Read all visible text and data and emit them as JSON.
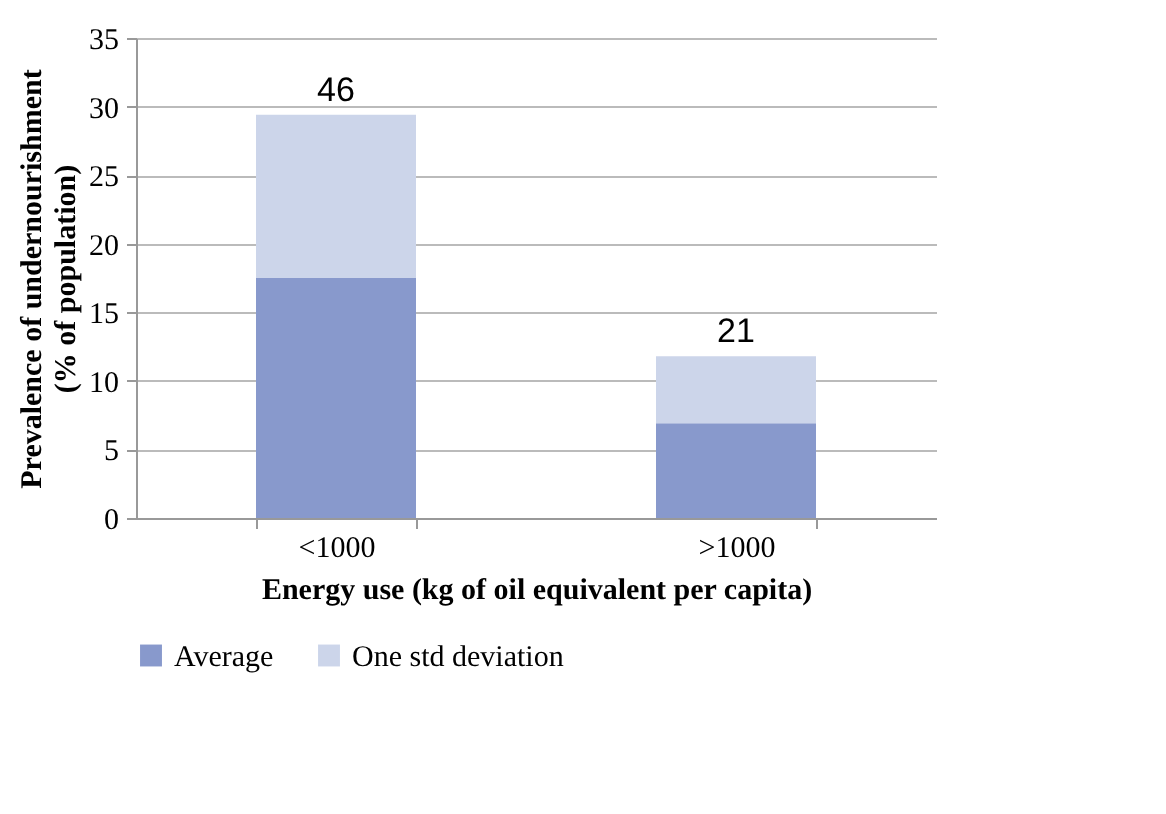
{
  "chart_data": {
    "type": "bar",
    "stacked": true,
    "xlabel": "Energy use (kg of oil equivalent  per capita)",
    "ylabel": "Prevalence of undernourishment\n(% of population)",
    "categories": [
      "<1000",
      ">1000"
    ],
    "series": [
      {
        "name": "Average",
        "color": "#8899cc",
        "values": [
          17.5,
          6.9
        ]
      },
      {
        "name": "One std deviation",
        "color": "#ccd5ea",
        "values": [
          11.9,
          4.9
        ]
      }
    ],
    "annotations": [
      {
        "text": "46",
        "x": "<1000",
        "y": 29.4
      },
      {
        "text": "21",
        "x": ">1000",
        "y": 11.8
      }
    ],
    "ylim": [
      0,
      35
    ],
    "yticks": [
      0,
      5,
      10,
      15,
      20,
      25,
      30,
      35
    ],
    "grid": "y",
    "legend": "bottom"
  }
}
